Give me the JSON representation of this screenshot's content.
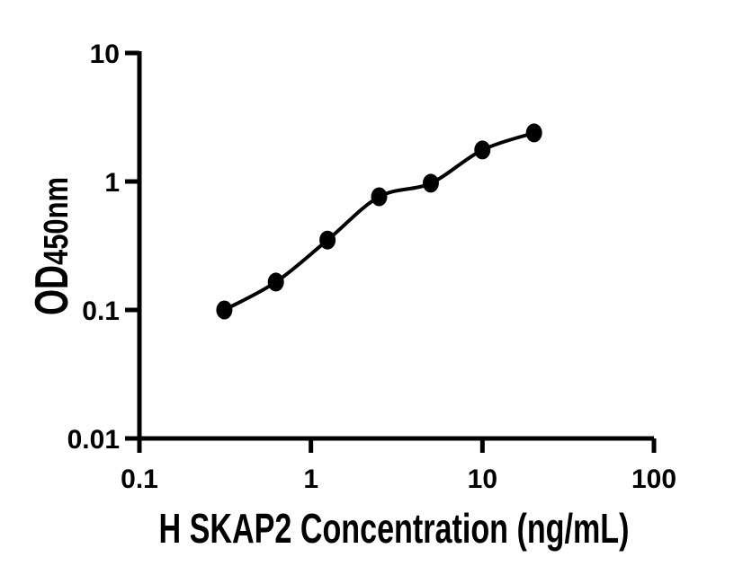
{
  "chart_data": {
    "type": "scatter",
    "title": "",
    "xlabel": "H SKAP2 Concentration (ng/mL)",
    "ylabel_main": "OD",
    "ylabel_sub": "450nm",
    "x_scale": "log",
    "y_scale": "log",
    "xlim": [
      0.1,
      100
    ],
    "ylim": [
      0.01,
      10
    ],
    "x_ticks": [
      0.1,
      1,
      10,
      100
    ],
    "x_tick_labels": [
      "0.1",
      "1",
      "10",
      "100"
    ],
    "y_ticks": [
      10,
      1,
      0.1,
      0.01
    ],
    "y_tick_labels": [
      "10",
      "1",
      "0.1",
      "0.01"
    ],
    "x": [
      0.3125,
      0.625,
      1.25,
      2.5,
      5,
      10,
      20
    ],
    "y": [
      0.1,
      0.165,
      0.35,
      0.76,
      0.97,
      1.76,
      2.39
    ],
    "grid": false,
    "legend": "none",
    "curve": "smooth-fit-line",
    "marker": "filled-circle",
    "marker_color": "#000000",
    "line_color": "#000000",
    "axis_color": "#000000",
    "background": "#ffffff"
  }
}
